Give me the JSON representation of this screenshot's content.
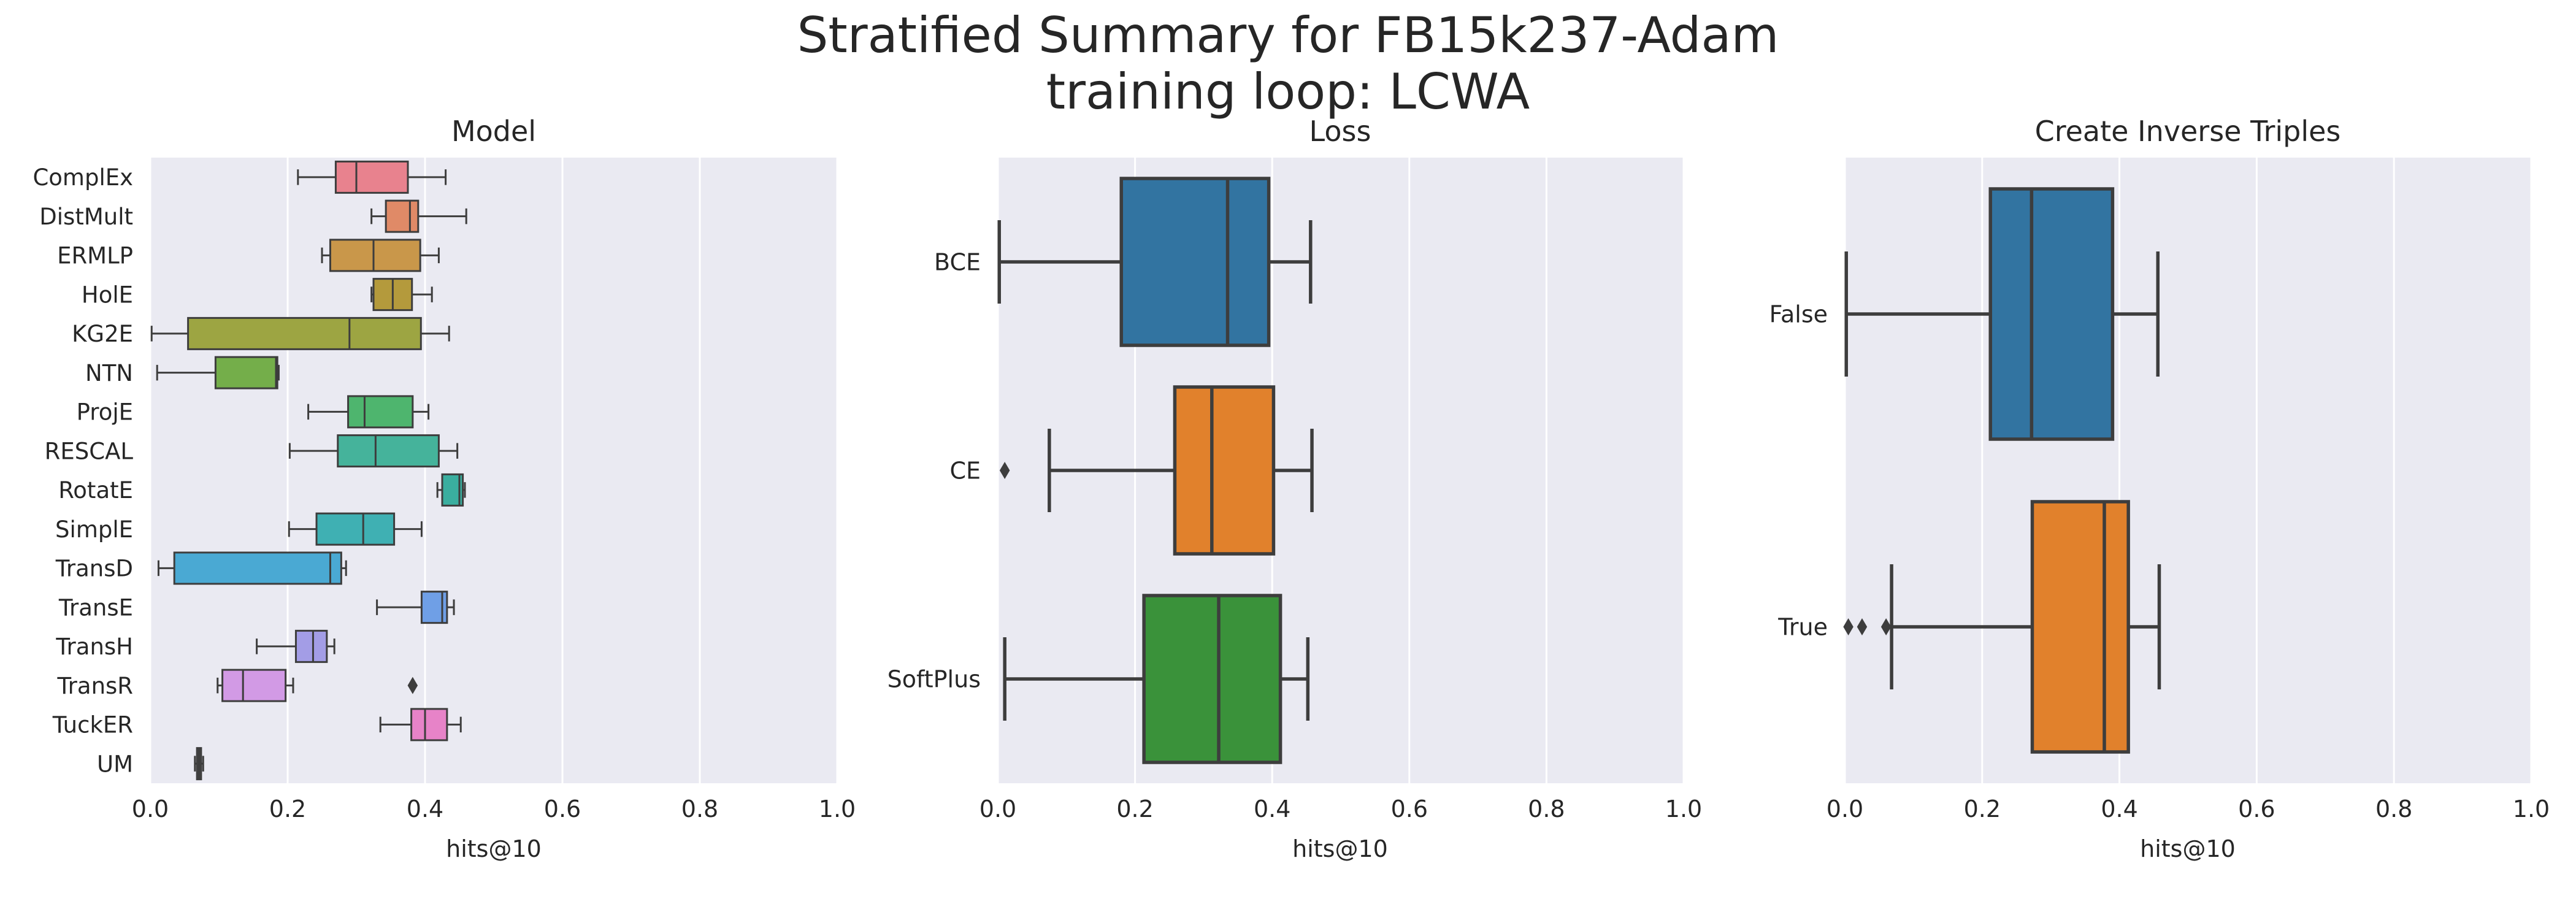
{
  "figure": {
    "title_line1": "Stratified Summary for FB15k237-Adam",
    "title_line2": "training loop: LCWA"
  },
  "chart_data": [
    {
      "type": "box",
      "orientation": "horizontal",
      "title": "Model",
      "xlabel": "hits@10",
      "xlim": [
        0.0,
        1.0
      ],
      "xticks": [
        "0.0",
        "0.2",
        "0.4",
        "0.6",
        "0.8",
        "1.0"
      ],
      "grid": true,
      "categories": [
        "ComplEx",
        "DistMult",
        "ERMLP",
        "HolE",
        "KG2E",
        "NTN",
        "ProjE",
        "RESCAL",
        "RotatE",
        "SimplE",
        "TransD",
        "TransE",
        "TransH",
        "TransR",
        "TuckER",
        "UM"
      ],
      "boxes": [
        {
          "whislo": 0.215,
          "q1": 0.27,
          "med": 0.3,
          "q3": 0.375,
          "whishi": 0.43,
          "fliers": [],
          "color": "#e8828e"
        },
        {
          "whislo": 0.322,
          "q1": 0.343,
          "med": 0.378,
          "q3": 0.39,
          "whishi": 0.46,
          "fliers": [],
          "color": "#e08a67"
        },
        {
          "whislo": 0.25,
          "q1": 0.262,
          "med": 0.325,
          "q3": 0.393,
          "whishi": 0.42,
          "fliers": [],
          "color": "#c9974a"
        },
        {
          "whislo": 0.322,
          "q1": 0.325,
          "med": 0.353,
          "q3": 0.381,
          "whishi": 0.41,
          "fliers": [],
          "color": "#b49a3c"
        },
        {
          "whislo": 0.002,
          "q1": 0.055,
          "med": 0.29,
          "q3": 0.394,
          "whishi": 0.435,
          "fliers": [],
          "color": "#9da542"
        },
        {
          "whislo": 0.01,
          "q1": 0.095,
          "med": 0.183,
          "q3": 0.185,
          "whishi": 0.187,
          "fliers": [],
          "color": "#74ae4a"
        },
        {
          "whislo": 0.23,
          "q1": 0.288,
          "med": 0.312,
          "q3": 0.382,
          "whishi": 0.405,
          "fliers": [],
          "color": "#4eb56e"
        },
        {
          "whislo": 0.203,
          "q1": 0.273,
          "med": 0.328,
          "q3": 0.42,
          "whishi": 0.447,
          "fliers": [],
          "color": "#45b39b"
        },
        {
          "whislo": 0.418,
          "q1": 0.425,
          "med": 0.45,
          "q3": 0.455,
          "whishi": 0.458,
          "fliers": [],
          "color": "#3aae9f"
        },
        {
          "whislo": 0.202,
          "q1": 0.242,
          "med": 0.31,
          "q3": 0.355,
          "whishi": 0.395,
          "fliers": [],
          "color": "#3fb0b3"
        },
        {
          "whislo": 0.012,
          "q1": 0.035,
          "med": 0.262,
          "q3": 0.278,
          "whishi": 0.285,
          "fliers": [],
          "color": "#4aa9d3"
        },
        {
          "whislo": 0.33,
          "q1": 0.395,
          "med": 0.425,
          "q3": 0.432,
          "whishi": 0.442,
          "fliers": [],
          "color": "#6f9fe6"
        },
        {
          "whislo": 0.155,
          "q1": 0.212,
          "med": 0.237,
          "q3": 0.257,
          "whishi": 0.268,
          "fliers": [],
          "color": "#a39de6"
        },
        {
          "whislo": 0.098,
          "q1": 0.105,
          "med": 0.135,
          "q3": 0.197,
          "whishi": 0.208,
          "fliers": [
            0.382
          ],
          "color": "#d29ae5"
        },
        {
          "whislo": 0.335,
          "q1": 0.38,
          "med": 0.4,
          "q3": 0.432,
          "whishi": 0.452,
          "fliers": [],
          "color": "#e783c8"
        },
        {
          "whislo": 0.065,
          "q1": 0.068,
          "med": 0.071,
          "q3": 0.074,
          "whishi": 0.077,
          "fliers": [],
          "color": "#555555"
        }
      ]
    },
    {
      "type": "box",
      "orientation": "horizontal",
      "title": "Loss",
      "xlabel": "hits@10",
      "xlim": [
        0.0,
        1.0
      ],
      "xticks": [
        "0.0",
        "0.2",
        "0.4",
        "0.6",
        "0.8",
        "1.0"
      ],
      "grid": true,
      "categories": [
        "BCE",
        "CE",
        "SoftPlus"
      ],
      "boxes": [
        {
          "whislo": 0.002,
          "q1": 0.18,
          "med": 0.335,
          "q3": 0.395,
          "whishi": 0.456,
          "fliers": [],
          "color": "#3274a1"
        },
        {
          "whislo": 0.075,
          "q1": 0.258,
          "med": 0.312,
          "q3": 0.402,
          "whishi": 0.458,
          "fliers": [
            0.01
          ],
          "color": "#e1812c"
        },
        {
          "whislo": 0.01,
          "q1": 0.213,
          "med": 0.322,
          "q3": 0.412,
          "whishi": 0.452,
          "fliers": [],
          "color": "#3a923a"
        }
      ]
    },
    {
      "type": "box",
      "orientation": "horizontal",
      "title": "Create Inverse Triples",
      "xlabel": "hits@10",
      "xlim": [
        0.0,
        1.0
      ],
      "xticks": [
        "0.0",
        "0.2",
        "0.4",
        "0.6",
        "0.8",
        "1.0"
      ],
      "grid": true,
      "categories": [
        "False",
        "True"
      ],
      "boxes": [
        {
          "whislo": 0.002,
          "q1": 0.212,
          "med": 0.272,
          "q3": 0.39,
          "whishi": 0.456,
          "fliers": [],
          "color": "#3274a1"
        },
        {
          "whislo": 0.068,
          "q1": 0.273,
          "med": 0.378,
          "q3": 0.413,
          "whishi": 0.458,
          "fliers": [
            0.005,
            0.025,
            0.06
          ],
          "color": "#e1812c"
        }
      ]
    }
  ]
}
